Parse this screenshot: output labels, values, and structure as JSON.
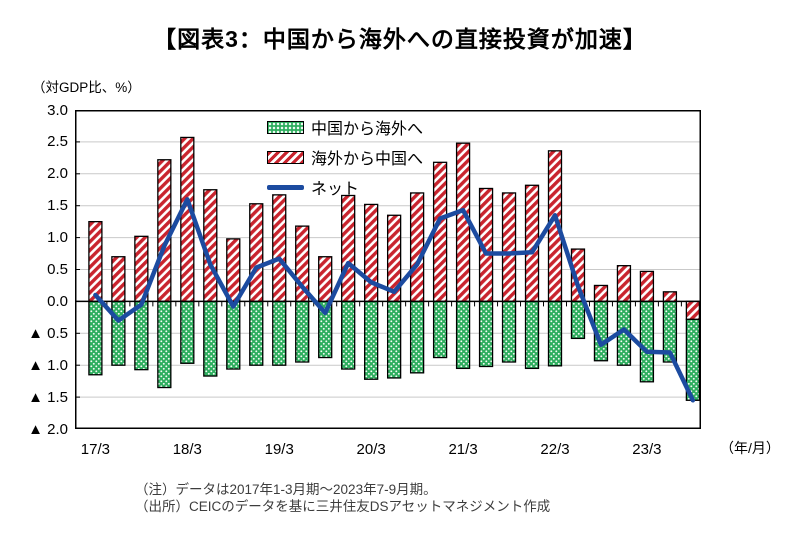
{
  "title": "【図表3：中国から海外への直接投資が加速】",
  "y_axis_unit": "（対GDP比、%）",
  "x_axis_unit": "（年/月）",
  "legend": {
    "outflow_label": "中国から海外へ",
    "inflow_label": "海外から中国へ",
    "net_label": "ネット"
  },
  "notes": {
    "line1": "（注）データは2017年1-3月期～2023年7-9月期。",
    "line2": "（出所）CEICのデータを基に三井住友DSアセットマネジメント作成"
  },
  "colors": {
    "green_bar": "#2eae5e",
    "red_stripe": "#c9242e",
    "net_line": "#1c4ba0",
    "grid": "#c9c9c9",
    "frame": "#000000"
  },
  "chart_data": {
    "type": "bar+line",
    "x": [
      "2017Q1",
      "2017Q2",
      "2017Q3",
      "2017Q4",
      "2018Q1",
      "2018Q2",
      "2018Q3",
      "2018Q4",
      "2019Q1",
      "2019Q2",
      "2019Q3",
      "2019Q4",
      "2020Q1",
      "2020Q2",
      "2020Q3",
      "2020Q4",
      "2021Q1",
      "2021Q2",
      "2021Q3",
      "2021Q4",
      "2022Q1",
      "2022Q2",
      "2022Q3",
      "2022Q4",
      "2023Q1",
      "2023Q2",
      "2023Q3"
    ],
    "x_tick_labels": [
      "17/3",
      "18/3",
      "19/3",
      "20/3",
      "21/3",
      "22/3",
      "23/3"
    ],
    "x_tick_indices": [
      0,
      4,
      8,
      12,
      16,
      20,
      24
    ],
    "series": [
      {
        "name": "中国から海外へ",
        "type": "bar",
        "style": "green-dotted",
        "values": [
          -1.15,
          -1.0,
          -1.07,
          -1.35,
          -0.97,
          -1.17,
          -1.06,
          -1.0,
          -1.0,
          -0.95,
          -0.88,
          -1.06,
          -1.22,
          -1.2,
          -1.12,
          -0.88,
          -1.05,
          -1.02,
          -0.95,
          -1.05,
          -1.01,
          -0.58,
          -0.93,
          -1.0,
          -1.26,
          -0.95,
          -1.27
        ]
      },
      {
        "name": "海外から中国へ",
        "type": "bar",
        "style": "red-striped",
        "values": [
          1.25,
          0.7,
          1.02,
          2.22,
          2.57,
          1.75,
          0.98,
          1.53,
          1.67,
          1.18,
          0.7,
          1.66,
          1.52,
          1.35,
          1.7,
          2.18,
          2.48,
          1.77,
          1.7,
          1.82,
          2.36,
          0.82,
          0.25,
          0.56,
          0.47,
          0.15,
          -0.28
        ]
      },
      {
        "name": "ネット",
        "type": "line",
        "style": "blue-line",
        "values": [
          0.1,
          -0.3,
          -0.05,
          0.87,
          1.6,
          0.58,
          -0.08,
          0.53,
          0.67,
          0.23,
          -0.18,
          0.6,
          0.3,
          0.15,
          0.58,
          1.3,
          1.43,
          0.75,
          0.75,
          0.77,
          1.35,
          0.24,
          -0.68,
          -0.44,
          -0.79,
          -0.8,
          -1.55
        ]
      }
    ],
    "ylim": [
      -2.0,
      3.0
    ],
    "ytick_step": 0.5,
    "negative_prefix": "▲ ",
    "grid": true,
    "legend_position": "inside-top"
  }
}
